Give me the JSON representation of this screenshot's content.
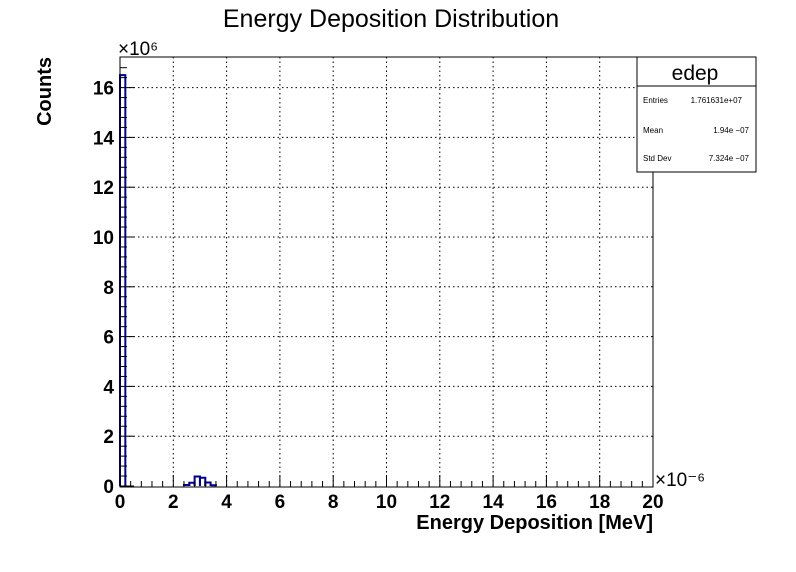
{
  "chart_data": {
    "type": "bar",
    "title": "Energy Deposition Distribution",
    "xlabel": "Energy Deposition [MeV]",
    "ylabel": "Counts",
    "x_multiplier": "×10⁻⁶",
    "y_multiplier": "×10⁶",
    "x_range": [
      0,
      20
    ],
    "y_range": [
      0,
      17.2
    ],
    "x_tick_labels": [
      "0",
      "2",
      "4",
      "6",
      "8",
      "10",
      "12",
      "14",
      "16",
      "18",
      "20"
    ],
    "y_tick_labels": [
      "0",
      "2",
      "4",
      "6",
      "8",
      "10",
      "12",
      "14",
      "16"
    ],
    "grid": true,
    "bin_width": 0.2,
    "bins": [
      {
        "x": 0.0,
        "value": 16.5
      },
      {
        "x": 2.4,
        "value": 0.04
      },
      {
        "x": 2.6,
        "value": 0.13
      },
      {
        "x": 2.8,
        "value": 0.38
      },
      {
        "x": 3.0,
        "value": 0.33
      },
      {
        "x": 3.2,
        "value": 0.14
      },
      {
        "x": 3.4,
        "value": 0.03
      }
    ],
    "line_color": "#00008b",
    "stats_box": {
      "name": "edep",
      "rows": [
        {
          "label": "Entries",
          "value": "1.761631e+07"
        },
        {
          "label": "Mean",
          "value": "1.94e −07"
        },
        {
          "label": "Std Dev",
          "value": "7.324e −07"
        }
      ]
    }
  }
}
